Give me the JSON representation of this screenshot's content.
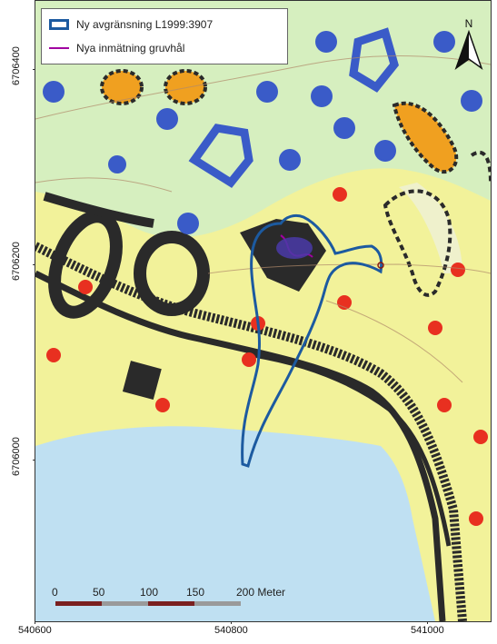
{
  "legend": {
    "items": [
      {
        "label": "Ny avgränsning L1999:3907",
        "color": "#1c5aa0",
        "kind": "polygon"
      },
      {
        "label": "Nya inmätning gruvhål",
        "color": "#a000a0",
        "kind": "line"
      }
    ]
  },
  "north_arrow": {
    "label": "N"
  },
  "axes": {
    "y_ticks": [
      "6706400",
      "6706200",
      "6706000"
    ],
    "x_ticks": [
      "540600",
      "540800",
      "541000"
    ]
  },
  "scale_bar": {
    "labels": [
      "0",
      "50",
      "100",
      "150",
      "200 Meter"
    ],
    "colors": [
      "#7a2020",
      "#9a9a9a"
    ]
  },
  "colors": {
    "lake": "#bfe0f2",
    "field": "#f2f29a",
    "forest": "#d6efbf",
    "blue_marks": "#3a5bc8",
    "red_marks": "#e83020",
    "orange_marks": "#f0a020",
    "dark_outline": "#2a2a2a",
    "boundary": "#1c5aa0",
    "mine_hole": "#a000a0"
  }
}
